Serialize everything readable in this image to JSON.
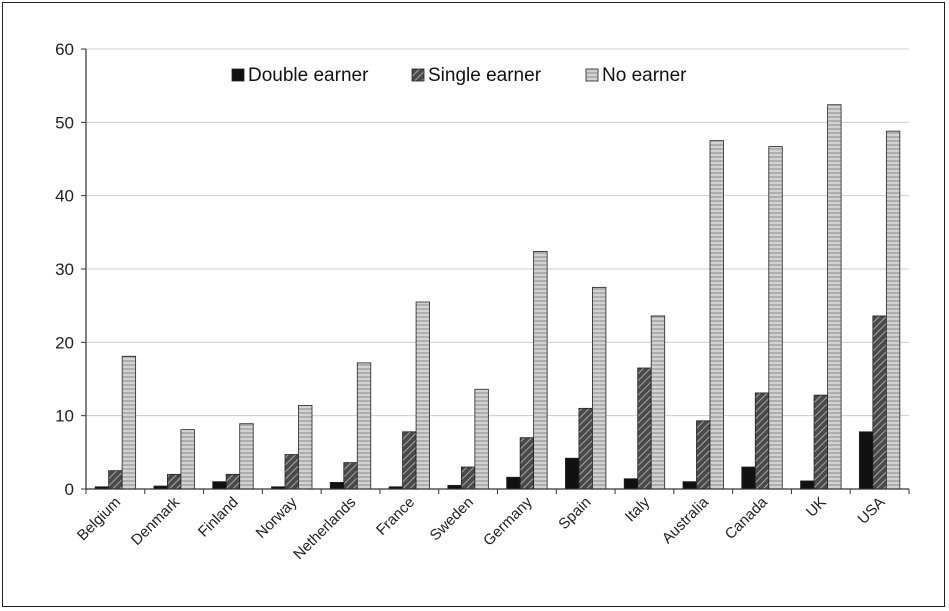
{
  "chart_data": {
    "type": "bar",
    "categories": [
      "Belgium",
      "Denmark",
      "Finland",
      "Norway",
      "Netherlands",
      "France",
      "Sweden",
      "Germany",
      "Spain",
      "Italy",
      "Australia",
      "Canada",
      "UK",
      "USA"
    ],
    "series": [
      {
        "name": "Double earner",
        "values": [
          0.3,
          0.4,
          1.0,
          0.3,
          0.9,
          0.3,
          0.5,
          1.6,
          4.2,
          1.4,
          1.0,
          3.0,
          1.1,
          7.8
        ]
      },
      {
        "name": "Single earner",
        "values": [
          2.5,
          2.0,
          2.0,
          4.7,
          3.6,
          7.8,
          3.0,
          7.0,
          11.0,
          16.5,
          9.3,
          13.1,
          12.8,
          23.6
        ]
      },
      {
        "name": "No earner",
        "values": [
          18.1,
          8.1,
          8.9,
          11.4,
          17.2,
          25.5,
          13.6,
          32.4,
          27.5,
          23.6,
          47.5,
          46.7,
          52.4,
          48.8
        ]
      }
    ],
    "ylim": [
      0,
      60
    ],
    "yticks": [
      0,
      10,
      20,
      30,
      40,
      50,
      60
    ],
    "grid": true,
    "legend": "top",
    "title": "",
    "xlabel": "",
    "ylabel": "",
    "colors": {
      "double": "#111111",
      "single": "#3a3a3a",
      "none": "#c9c9c9",
      "grid": "#cfcfcf",
      "axis": "#333333"
    }
  }
}
